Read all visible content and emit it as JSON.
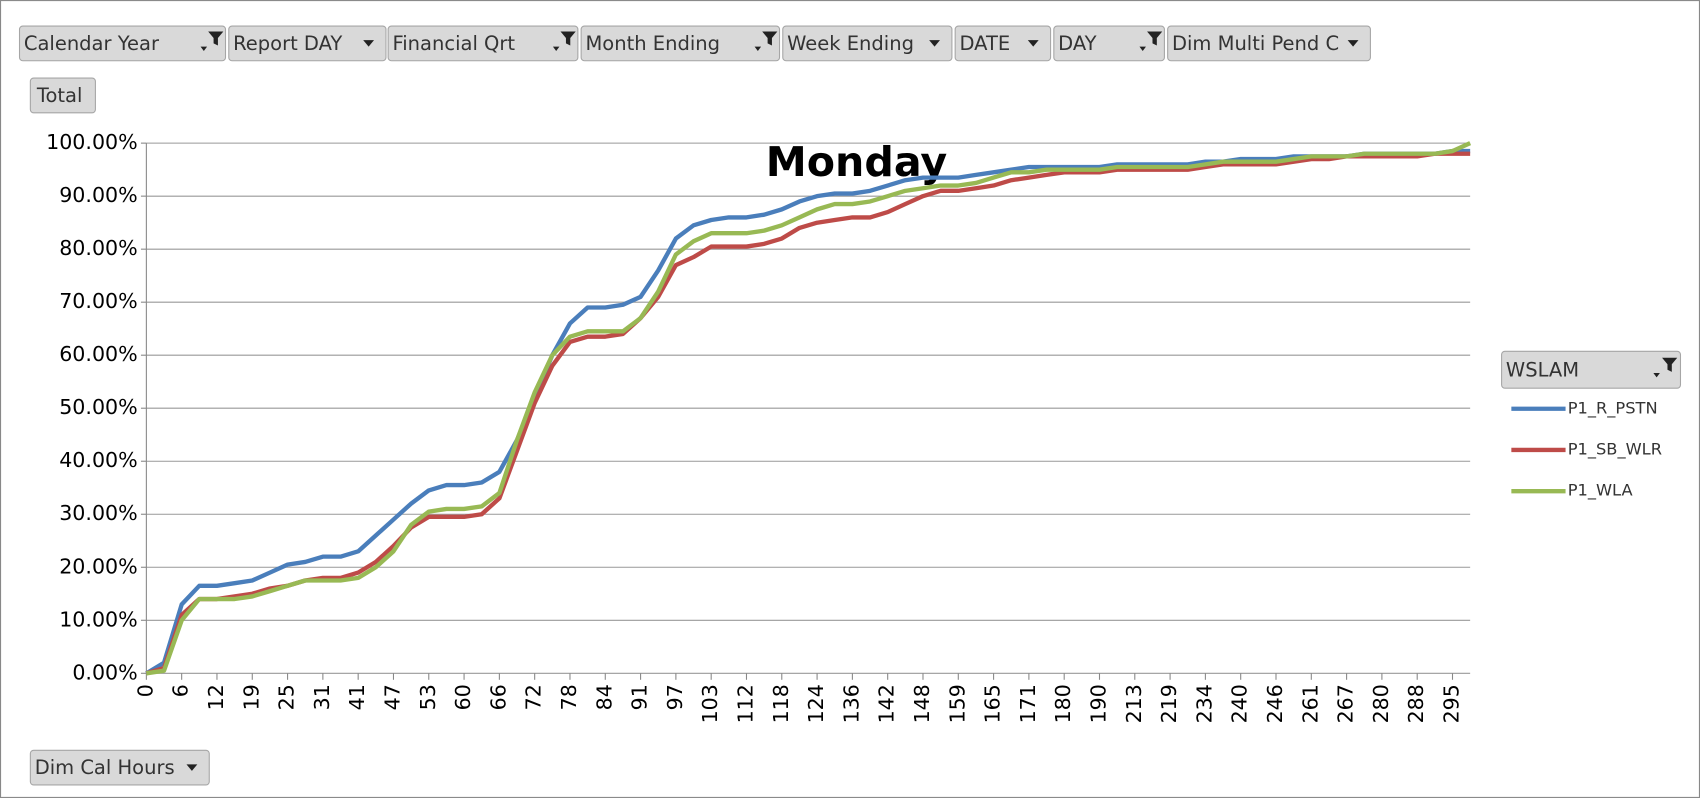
{
  "filters": [
    {
      "label": "Calendar Year",
      "filtered": true
    },
    {
      "label": "Report DAY",
      "filtered": false
    },
    {
      "label": "Financial Qrt",
      "filtered": true
    },
    {
      "label": "Month Ending",
      "filtered": true
    },
    {
      "label": "Week Ending",
      "filtered": false
    },
    {
      "label": "DATE",
      "filtered": false
    },
    {
      "label": "DAY",
      "filtered": true
    },
    {
      "label": "Dim Multi Pend C",
      "filtered": false
    }
  ],
  "values_button": "Total",
  "axis_button": "Dim Cal Hours",
  "chart_data": {
    "type": "line",
    "title": "Monday",
    "legend_title": "WSLAM",
    "legend": "right",
    "grid": true,
    "categories": [
      "0",
      null,
      "6",
      null,
      "12",
      null,
      "19",
      null,
      "25",
      null,
      "31",
      null,
      "41",
      null,
      "47",
      null,
      "53",
      null,
      "60",
      null,
      "66",
      null,
      "72",
      null,
      "78",
      null,
      "84",
      null,
      "91",
      null,
      "97",
      null,
      "103",
      null,
      "112",
      null,
      "118",
      null,
      "124",
      null,
      "136",
      null,
      "142",
      null,
      "148",
      null,
      "159",
      null,
      "165",
      null,
      "171",
      null,
      "180",
      null,
      "190",
      null,
      "213",
      null,
      "219",
      null,
      "234",
      null,
      "240",
      null,
      "246",
      null,
      "261",
      null,
      "267",
      null,
      "280",
      null,
      "288",
      null,
      "295",
      null
    ],
    "ylim": [
      0,
      100
    ],
    "yticks": [
      {
        "value": 0,
        "label": "0.00%"
      },
      {
        "value": 10,
        "label": "10.00%"
      },
      {
        "value": 20,
        "label": "20.00%"
      },
      {
        "value": 30,
        "label": "30.00%"
      },
      {
        "value": 40,
        "label": "40.00%"
      },
      {
        "value": 50,
        "label": "50.00%"
      },
      {
        "value": 60,
        "label": "60.00%"
      },
      {
        "value": 70,
        "label": "70.00%"
      },
      {
        "value": 80,
        "label": "80.00%"
      },
      {
        "value": 90,
        "label": "90.00%"
      },
      {
        "value": 100,
        "label": "100.00%"
      }
    ],
    "series": [
      {
        "name": "P1_R_PSTN",
        "color": "#4a7ebb",
        "values": [
          0,
          2,
          13,
          16.5,
          16.5,
          17,
          17.5,
          19,
          20.5,
          21,
          22,
          22,
          23,
          26,
          29,
          32,
          34.5,
          35.5,
          35.5,
          36,
          38,
          44,
          52,
          60,
          66,
          69,
          69,
          69.5,
          71,
          76,
          82,
          84.5,
          85.5,
          86,
          86,
          86.5,
          87.5,
          89,
          90,
          90.5,
          90.5,
          91,
          92,
          93,
          93.5,
          93.5,
          93.5,
          94,
          94.5,
          95,
          95.5,
          95.5,
          95.5,
          95.5,
          95.5,
          96,
          96,
          96,
          96,
          96,
          96.5,
          96.5,
          97,
          97,
          97,
          97.5,
          97.5,
          97.5,
          97.5,
          98,
          98,
          98,
          98,
          98,
          98.5,
          98.5
        ]
      },
      {
        "name": "P1_SB_WLR",
        "color": "#be4b48",
        "values": [
          0,
          1,
          11,
          14,
          14,
          14.5,
          15,
          16,
          16.5,
          17.5,
          18,
          18,
          19,
          21,
          24,
          27.5,
          29.5,
          29.5,
          29.5,
          30,
          33,
          42,
          51,
          58,
          62.5,
          63.5,
          63.5,
          64,
          67,
          71,
          77,
          78.5,
          80.5,
          80.5,
          80.5,
          81,
          82,
          84,
          85,
          85.5,
          86,
          86,
          87,
          88.5,
          90,
          91,
          91,
          91.5,
          92,
          93,
          93.5,
          94,
          94.5,
          94.5,
          94.5,
          95,
          95,
          95,
          95,
          95,
          95.5,
          96,
          96,
          96,
          96,
          96.5,
          97,
          97,
          97.5,
          97.5,
          97.5,
          97.5,
          97.5,
          98,
          98,
          98
        ]
      },
      {
        "name": "P1_WLA",
        "color": "#98b954",
        "values": [
          0,
          0.5,
          10,
          14,
          14,
          14,
          14.5,
          15.5,
          16.5,
          17.5,
          17.5,
          17.5,
          18,
          20,
          23,
          28,
          30.5,
          31,
          31,
          31.5,
          34,
          44,
          53,
          60,
          63.5,
          64.5,
          64.5,
          64.5,
          67,
          72,
          79,
          81.5,
          83,
          83,
          83,
          83.5,
          84.5,
          86,
          87.5,
          88.5,
          88.5,
          89,
          90,
          91,
          91.5,
          92,
          92,
          92.5,
          93.5,
          94.5,
          94.5,
          95,
          95,
          95,
          95,
          95.5,
          95.5,
          95.5,
          95.5,
          95.5,
          96,
          96.5,
          96.5,
          96.5,
          96.5,
          97,
          97.5,
          97.5,
          97.5,
          98,
          98,
          98,
          98,
          98,
          98.5,
          100
        ]
      }
    ]
  }
}
